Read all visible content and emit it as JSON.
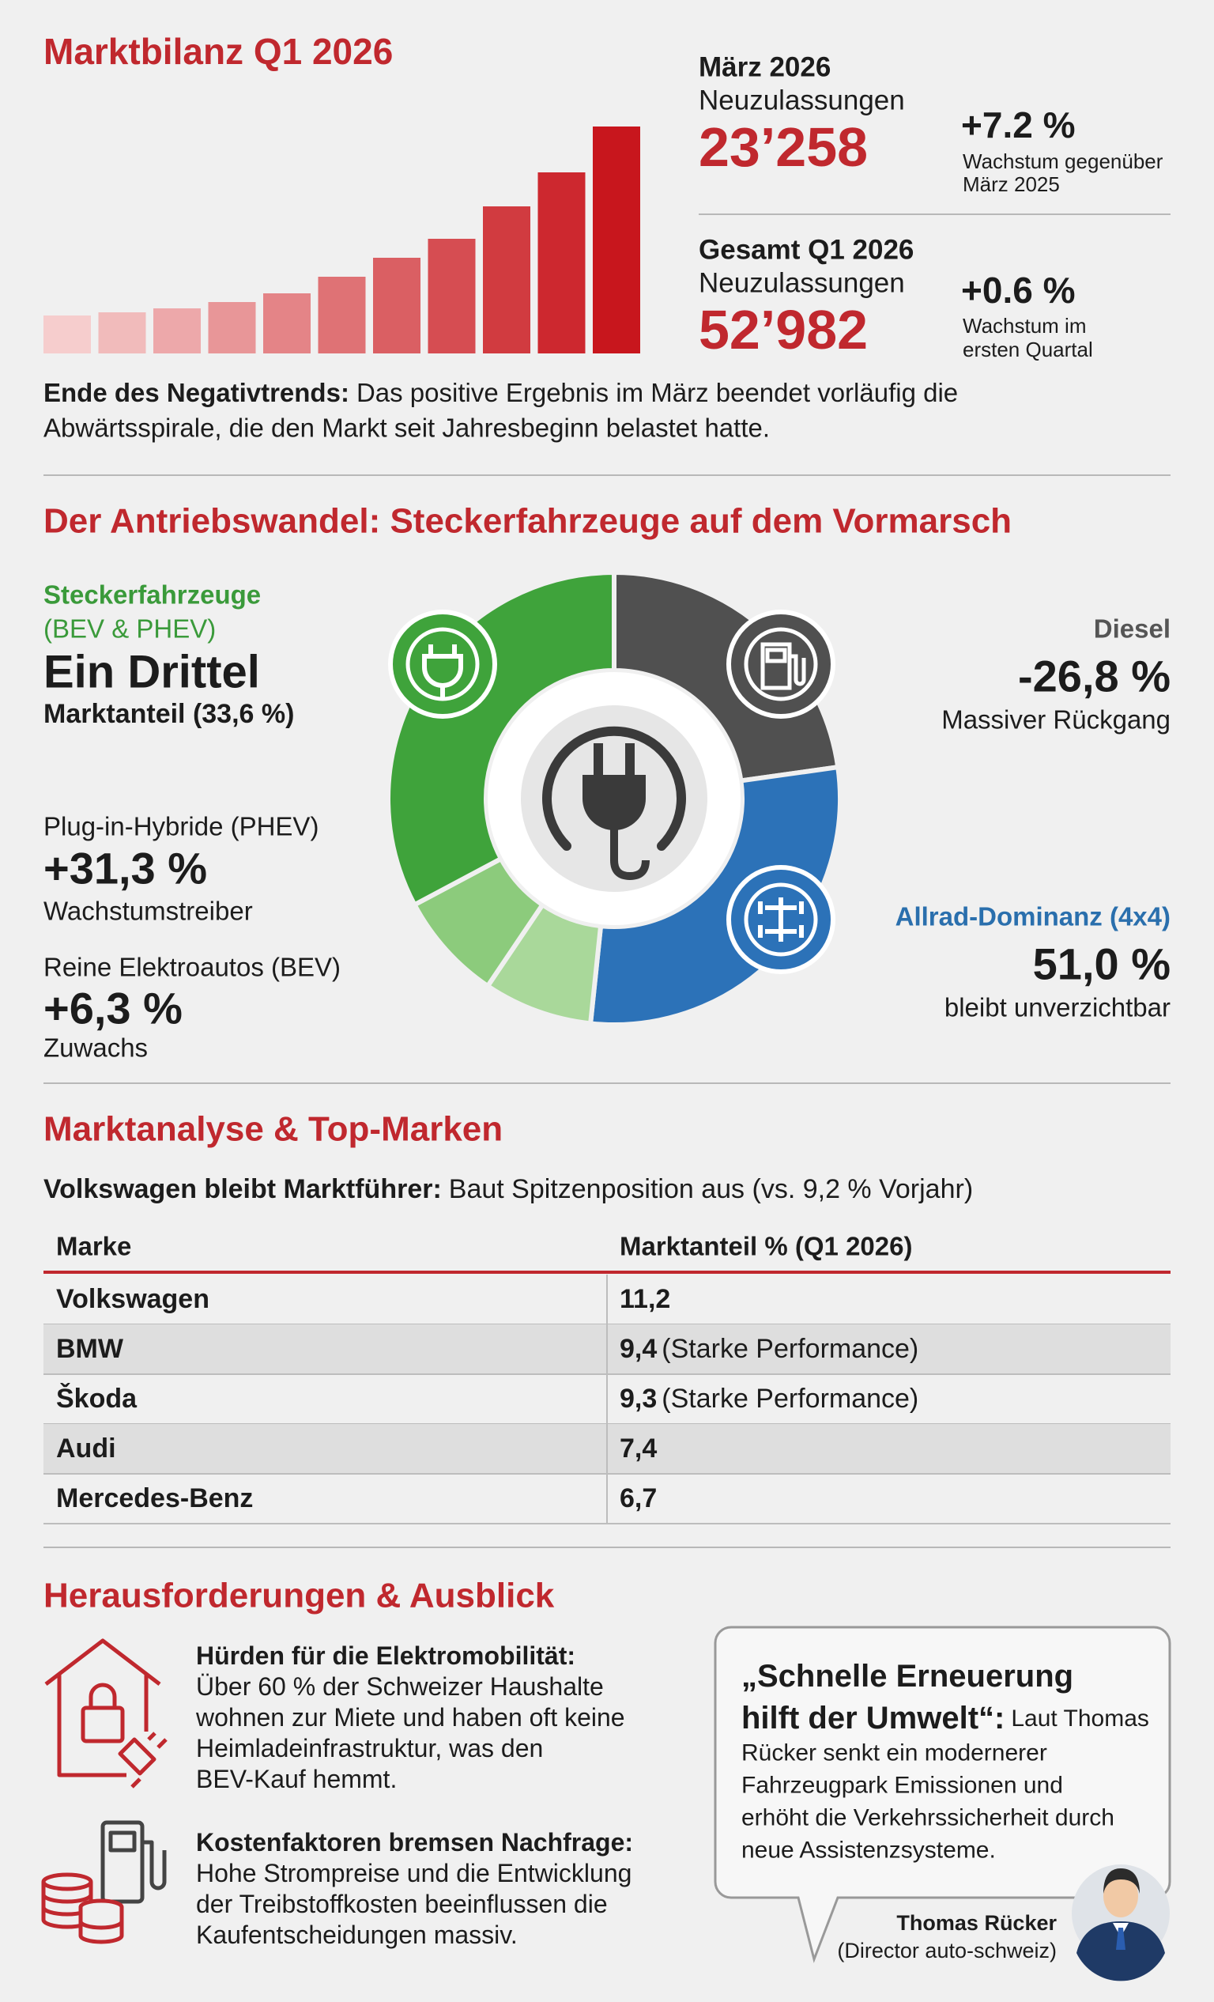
{
  "header": {
    "title": "Marktbilanz Q1 2026"
  },
  "march": {
    "label": "März 2026",
    "sublabel": "Neuzulassungen",
    "value": "23’258",
    "growth": "+7.2 %",
    "growth_note": [
      "Wachstum gegenüber",
      "März 2025"
    ]
  },
  "quarter": {
    "label": "Gesamt Q1 2026",
    "sublabel": "Neuzulassungen",
    "value": "52’982",
    "growth": "+0.6 %",
    "growth_note": [
      "Wachstum im",
      "ersten Quartal"
    ]
  },
  "summary": {
    "lead": "Ende des Negativtrends:",
    "lines": [
      "Das positive Ergebnis im März beendet vorläufig die",
      "Abwärtsspirale, die den Markt seit Jahresbeginn belastet hatte."
    ]
  },
  "drive": {
    "title": "Der Antriebswandel: Steckerfahrzeuge auf dem Vormarsch",
    "plugin": {
      "label": "Steckerfahrzeuge",
      "sublabel": "(BEV & PHEV)",
      "value": "Ein Drittel",
      "note": "Marktanteil (33,6 %)"
    },
    "phev": {
      "label": "Plug-in-Hybride (PHEV)",
      "value": "+31,3 %",
      "note": "Wachstumstreiber"
    },
    "bev": {
      "label": "Reine Elektroautos (BEV)",
      "value": "+6,3 %",
      "note": "Zuwachs"
    },
    "diesel": {
      "label": "Diesel",
      "value": "-26,8 %",
      "note": "Massiver Rückgang"
    },
    "awd": {
      "label": "Allrad-Dominanz (4x4)",
      "value": "51,0 %",
      "note": "bleibt unverzichtbar"
    }
  },
  "brands": {
    "title": "Marktanalyse & Top-Marken",
    "lead": "Volkswagen bleibt Marktführer:",
    "text": "Baut Spitzenposition aus (vs. 9,2 % Vorjahr)",
    "table": {
      "header": [
        "Marke",
        "Marktanteil % (Q1 2026)"
      ],
      "rows": [
        {
          "brand": "Volkswagen",
          "share": "11,2"
        },
        {
          "brand": "BMW",
          "share": "9,4",
          "note": "(Starke Performance)"
        },
        {
          "brand": "Škoda",
          "share": "9,3",
          "note": "(Starke Performance)"
        },
        {
          "brand": "Audi",
          "share": "7,4"
        },
        {
          "brand": "Mercedes-Benz",
          "share": "6,7"
        }
      ]
    }
  },
  "outlook": {
    "title": "Herausforderungen & Ausblick",
    "items": [
      {
        "title": "Hürden für die Elektromobilität:",
        "lines": [
          "Über 60 % der Schweizer Haushalte",
          "wohnen zur Miete und haben oft keine",
          "Heimladeinfrastruktur, was den",
          "BEV-Kauf hemmt."
        ]
      },
      {
        "title": "Kostenfaktoren bremsen Nachfrage:",
        "lines": [
          "Hohe Strompreise und die Entwicklung",
          "der Treibstoffkosten beeinflussen die",
          "Kaufentscheidungen massiv."
        ]
      }
    ],
    "quote": {
      "lead": [
        "„Schnelle Erneuerung",
        "hilft der Umwelt“:"
      ],
      "lines": [
        "Laut Thomas",
        "Rücker senkt ein modernerer",
        "Fahrzeugpark Emissionen und",
        "erhöht die Verkehrssicherheit durch",
        "neue Assistenzsysteme."
      ],
      "author": "Thomas Rücker",
      "role": "(Director auto-schweiz)"
    }
  }
}
